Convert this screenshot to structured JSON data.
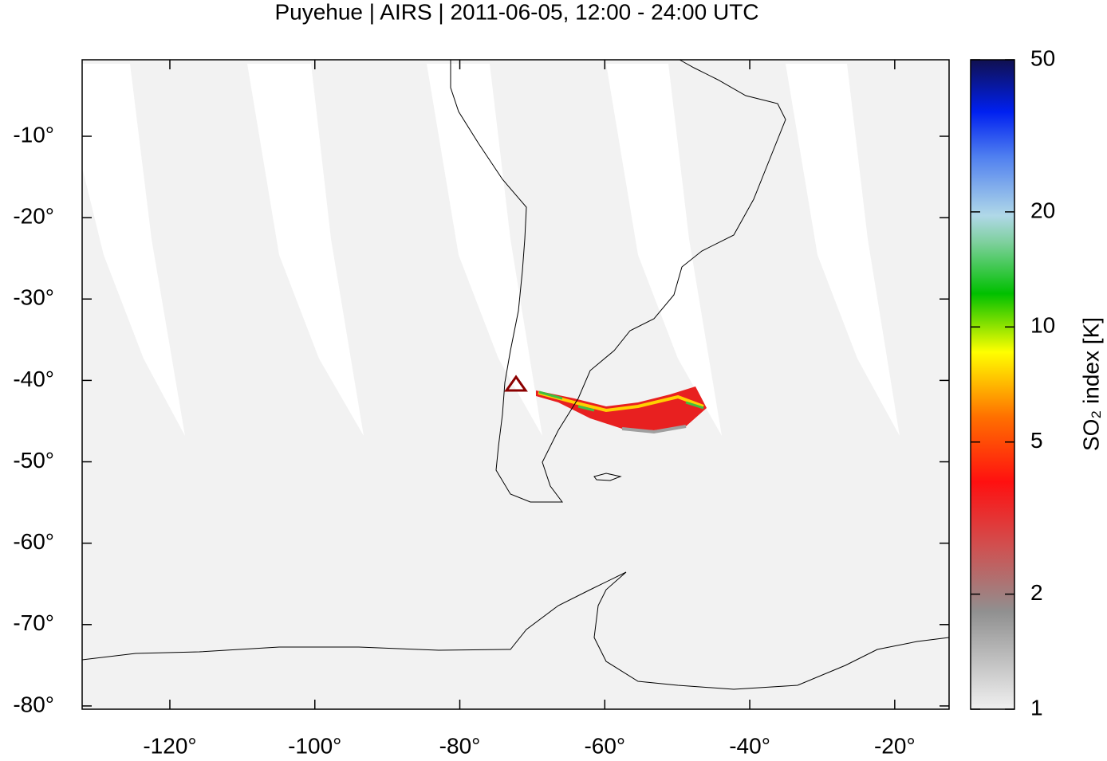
{
  "chart_data": {
    "type": "map",
    "title": "Puyehue | AIRS | 2011-06-05, 12:00 - 24:00 UTC",
    "xlim": [
      -132.1,
      -12.5
    ],
    "ylim": [
      -80.4,
      -0.6
    ],
    "xticks": [
      {
        "value": -120,
        "label": "-120°"
      },
      {
        "value": -100,
        "label": "-100°"
      },
      {
        "value": -80,
        "label": "-80°"
      },
      {
        "value": -60,
        "label": "-60°"
      },
      {
        "value": -40,
        "label": "-40°"
      },
      {
        "value": -20,
        "label": "-20°"
      }
    ],
    "yticks": [
      {
        "value": -10,
        "label": "-10°"
      },
      {
        "value": -20,
        "label": "-20°"
      },
      {
        "value": -30,
        "label": "-30°"
      },
      {
        "value": -40,
        "label": "-40°"
      },
      {
        "value": -50,
        "label": "-50°"
      },
      {
        "value": -60,
        "label": "-60°"
      },
      {
        "value": -70,
        "label": "-70°"
      },
      {
        "value": -80,
        "label": "-80°"
      }
    ],
    "colorbar": {
      "label": "SO₂ index [K]",
      "lim": [
        1,
        50
      ],
      "log": true,
      "ticks": [
        1,
        2,
        5,
        10,
        20,
        50
      ]
    }
  }
}
